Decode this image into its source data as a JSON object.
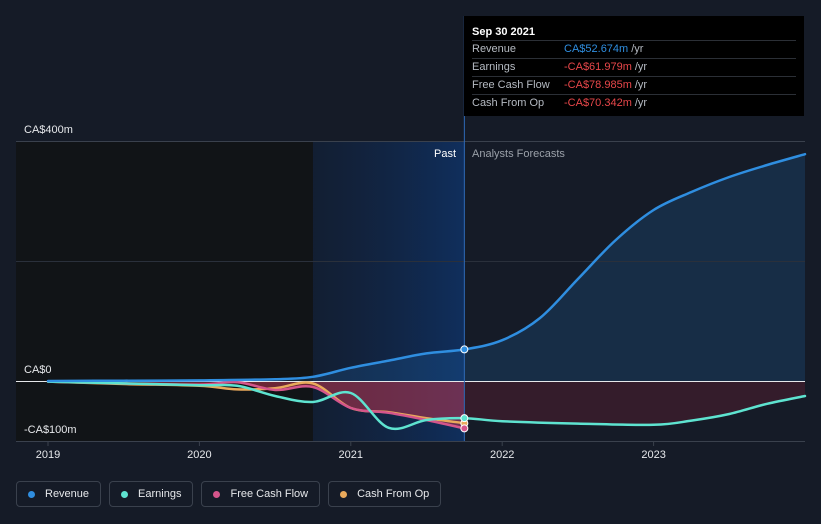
{
  "chart_data": {
    "type": "line",
    "y_axis": {
      "labels": [
        "CA$400m",
        "CA$0",
        "-CA$100m"
      ],
      "ylim": [
        -100,
        400
      ]
    },
    "x_axis": {
      "ticks": [
        2019,
        2020,
        2021,
        2022,
        2023
      ],
      "range": [
        2019.0,
        2024.0
      ]
    },
    "regions": {
      "past_label": "Past",
      "forecast_label": "Analysts Forecasts",
      "divider_x": 2021.75,
      "shade_start_x": 2020.75
    },
    "series": [
      {
        "name": "Revenue",
        "color": "#2f8ee0",
        "points": [
          [
            2019.0,
            0
          ],
          [
            2019.5,
            0.5
          ],
          [
            2020.0,
            1
          ],
          [
            2020.5,
            3
          ],
          [
            2020.75,
            7
          ],
          [
            2021.0,
            22
          ],
          [
            2021.25,
            34
          ],
          [
            2021.5,
            46
          ],
          [
            2021.75,
            52.674
          ],
          [
            2022.0,
            68
          ],
          [
            2022.25,
            105
          ],
          [
            2022.5,
            170
          ],
          [
            2022.75,
            235
          ],
          [
            2023.0,
            285
          ],
          [
            2023.25,
            315
          ],
          [
            2023.5,
            340
          ],
          [
            2023.75,
            360
          ],
          [
            2024.0,
            378
          ]
        ]
      },
      {
        "name": "Earnings",
        "color": "#5ee3d0",
        "points": [
          [
            2019.0,
            -1
          ],
          [
            2019.5,
            -4
          ],
          [
            2020.0,
            -7
          ],
          [
            2020.25,
            -8
          ],
          [
            2020.5,
            -25
          ],
          [
            2020.75,
            -35
          ],
          [
            2021.0,
            -20
          ],
          [
            2021.25,
            -78
          ],
          [
            2021.5,
            -65
          ],
          [
            2021.75,
            -61.979
          ],
          [
            2022.0,
            -67
          ],
          [
            2022.5,
            -71
          ],
          [
            2023.0,
            -73
          ],
          [
            2023.25,
            -66
          ],
          [
            2023.5,
            -55
          ],
          [
            2023.75,
            -38
          ],
          [
            2024.0,
            -25
          ]
        ]
      },
      {
        "name": "Free Cash Flow",
        "color": "#d4558b",
        "points": [
          [
            2019.0,
            -1
          ],
          [
            2019.5,
            -4
          ],
          [
            2020.0,
            -6
          ],
          [
            2020.25,
            -2
          ],
          [
            2020.5,
            -15
          ],
          [
            2020.75,
            -10
          ],
          [
            2021.0,
            -45
          ],
          [
            2021.25,
            -53
          ],
          [
            2021.5,
            -65
          ],
          [
            2021.75,
            -78.985
          ]
        ]
      },
      {
        "name": "Cash From Op",
        "color": "#e9a95b",
        "points": [
          [
            2019.0,
            -1
          ],
          [
            2019.5,
            -5
          ],
          [
            2020.0,
            -8
          ],
          [
            2020.25,
            -14
          ],
          [
            2020.5,
            -12
          ],
          [
            2020.75,
            -4
          ],
          [
            2021.0,
            -45
          ],
          [
            2021.25,
            -52
          ],
          [
            2021.5,
            -62
          ],
          [
            2021.75,
            -70.342
          ]
        ]
      }
    ]
  },
  "tooltip": {
    "date": "Sep 30 2021",
    "rows": [
      {
        "name": "Revenue",
        "value": "CA$52.674m",
        "unit": "/yr",
        "color": "#2f8ee0"
      },
      {
        "name": "Earnings",
        "value": "-CA$61.979m",
        "unit": "/yr",
        "color": "#e8474a"
      },
      {
        "name": "Free Cash Flow",
        "value": "-CA$78.985m",
        "unit": "/yr",
        "color": "#e8474a"
      },
      {
        "name": "Cash From Op",
        "value": "-CA$70.342m",
        "unit": "/yr",
        "color": "#e8474a"
      }
    ]
  },
  "legend": [
    {
      "label": "Revenue",
      "color": "#2f8ee0"
    },
    {
      "label": "Earnings",
      "color": "#5ee3d0"
    },
    {
      "label": "Free Cash Flow",
      "color": "#d4558b"
    },
    {
      "label": "Cash From Op",
      "color": "#e9a95b"
    }
  ]
}
